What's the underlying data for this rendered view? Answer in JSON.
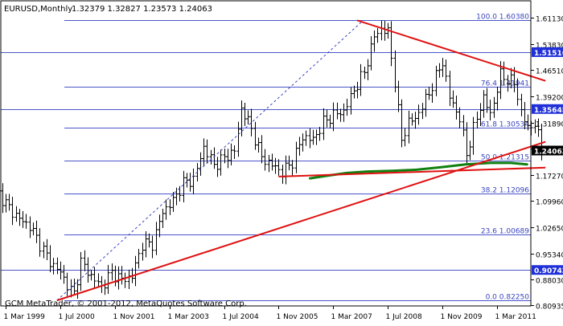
{
  "header": {
    "symbol": "EURUSD,Monthly",
    "ohlc": "1.32379 1.32827 1.23573 1.24063"
  },
  "footer_note": "GCM MetaTrader, © 2001-2012, MetaQuotes Software Corp.",
  "colors": {
    "background": "#ffffff",
    "frame": "#000000",
    "bar": "#000000",
    "fib_line": "#4a55c8",
    "fib_label": "#3a45c0",
    "trendline": "#e01010",
    "dashed_trend": "#3a45c0",
    "moving_average": "#108010",
    "price_box_blue": "#2030d8",
    "price_box_black": "#000000",
    "price_box_text": "#ffffff"
  },
  "chart_data": {
    "type": "ohlc",
    "title": "EURUSD,Monthly",
    "ylim": [
      0.78,
      1.66
    ],
    "y_ticks": [
      "1.61130",
      "1.53830",
      "1.46510",
      "1.39200",
      "1.31890",
      "1.24580",
      "1.17270",
      "1.09960",
      "1.02650",
      "0.95340",
      "0.88030",
      "0.80935"
    ],
    "y_tick_values": [
      1.6113,
      1.5383,
      1.4651,
      1.392,
      1.3189,
      1.2458,
      1.1727,
      1.0996,
      1.0265,
      0.9534,
      0.8803,
      0.80935
    ],
    "x_ticks": [
      "1 Mar 1999",
      "1 Jul 2000",
      "1 Nov 2001",
      "1 Mar 2003",
      "1 Jul 2004",
      "1 Nov 2005",
      "1 Mar 2007",
      "1 Jul 2008",
      "1 Nov 2009",
      "1 Mar 2011"
    ],
    "x_tick_values": [
      1999.167,
      2000.5,
      2001.833,
      2003.167,
      2004.5,
      2005.833,
      2007.167,
      2008.5,
      2009.833,
      2011.167
    ],
    "xlim": [
      1999.0,
      2012.35
    ],
    "fib_levels": [
      {
        "label": "100.0 1.60380",
        "price": 1.6038
      },
      {
        "label": "76.4 1.41941",
        "price": 1.41941
      },
      {
        "label": "61.8 1.30534",
        "price": 1.30534
      },
      {
        "label": "50.0 1.21315",
        "price": 1.21315
      },
      {
        "label": "38.2 1.12096",
        "price": 1.12096
      },
      {
        "label": "23.6 1.00689",
        "price": 1.00689
      },
      {
        "label": "0.0 0.82250",
        "price": 0.8225
      }
    ],
    "horizontal_lines": [
      {
        "label": "1.51516",
        "price": 1.51516
      },
      {
        "label": "1.35645",
        "price": 1.35645
      },
      {
        "label": "0.90742",
        "price": 0.90742
      }
    ],
    "current_price": {
      "label": "1.24063",
      "price": 1.24063
    },
    "series_monthly_close": [
      {
        "t": 1999.0,
        "c": 1.12
      },
      {
        "t": 1999.25,
        "c": 1.08
      },
      {
        "t": 1999.5,
        "c": 1.05
      },
      {
        "t": 1999.75,
        "c": 1.03
      },
      {
        "t": 2000.0,
        "c": 0.98
      },
      {
        "t": 2000.25,
        "c": 0.93
      },
      {
        "t": 2000.5,
        "c": 0.9
      },
      {
        "t": 2000.75,
        "c": 0.85
      },
      {
        "t": 2000.83,
        "c": 0.84
      },
      {
        "t": 2001.0,
        "c": 0.93
      },
      {
        "t": 2001.25,
        "c": 0.89
      },
      {
        "t": 2001.5,
        "c": 0.86
      },
      {
        "t": 2001.75,
        "c": 0.9
      },
      {
        "t": 2002.0,
        "c": 0.88
      },
      {
        "t": 2002.25,
        "c": 0.89
      },
      {
        "t": 2002.5,
        "c": 0.98
      },
      {
        "t": 2002.75,
        "c": 0.98
      },
      {
        "t": 2003.0,
        "c": 1.07
      },
      {
        "t": 2003.25,
        "c": 1.1
      },
      {
        "t": 2003.5,
        "c": 1.15
      },
      {
        "t": 2003.75,
        "c": 1.16
      },
      {
        "t": 2004.0,
        "c": 1.25
      },
      {
        "t": 2004.25,
        "c": 1.2
      },
      {
        "t": 2004.5,
        "c": 1.22
      },
      {
        "t": 2004.75,
        "c": 1.24
      },
      {
        "t": 2004.92,
        "c": 1.36
      },
      {
        "t": 2005.17,
        "c": 1.3
      },
      {
        "t": 2005.42,
        "c": 1.22
      },
      {
        "t": 2005.67,
        "c": 1.2
      },
      {
        "t": 2005.92,
        "c": 1.18
      },
      {
        "t": 2006.17,
        "c": 1.21
      },
      {
        "t": 2006.42,
        "c": 1.28
      },
      {
        "t": 2006.67,
        "c": 1.27
      },
      {
        "t": 2006.92,
        "c": 1.32
      },
      {
        "t": 2007.17,
        "c": 1.34
      },
      {
        "t": 2007.42,
        "c": 1.35
      },
      {
        "t": 2007.67,
        "c": 1.41
      },
      {
        "t": 2007.92,
        "c": 1.46
      },
      {
        "t": 2008.17,
        "c": 1.56
      },
      {
        "t": 2008.33,
        "c": 1.58
      },
      {
        "t": 2008.5,
        "c": 1.57
      },
      {
        "t": 2008.67,
        "c": 1.43
      },
      {
        "t": 2008.83,
        "c": 1.27
      },
      {
        "t": 2009.0,
        "c": 1.32
      },
      {
        "t": 2009.17,
        "c": 1.33
      },
      {
        "t": 2009.5,
        "c": 1.4
      },
      {
        "t": 2009.83,
        "c": 1.49
      },
      {
        "t": 2010.0,
        "c": 1.39
      },
      {
        "t": 2010.25,
        "c": 1.33
      },
      {
        "t": 2010.42,
        "c": 1.23
      },
      {
        "t": 2010.58,
        "c": 1.3
      },
      {
        "t": 2010.83,
        "c": 1.39
      },
      {
        "t": 2011.0,
        "c": 1.34
      },
      {
        "t": 2011.25,
        "c": 1.45
      },
      {
        "t": 2011.42,
        "c": 1.44
      },
      {
        "t": 2011.58,
        "c": 1.43
      },
      {
        "t": 2011.75,
        "c": 1.35
      },
      {
        "t": 2011.92,
        "c": 1.3
      },
      {
        "t": 2012.08,
        "c": 1.32
      },
      {
        "t": 2012.25,
        "c": 1.24
      }
    ],
    "trendlines": [
      {
        "from": {
          "t": 2000.42,
          "p": 0.8225
        },
        "to": {
          "t": 2012.35,
          "p": 1.265
        }
      },
      {
        "from": {
          "t": 2005.83,
          "p": 1.168
        },
        "to": {
          "t": 2012.35,
          "p": 1.193
        }
      },
      {
        "from": {
          "t": 2007.75,
          "p": 1.6038
        },
        "to": {
          "t": 2012.35,
          "p": 1.435
        }
      }
    ],
    "dashed_trendline": {
      "from": {
        "t": 2000.42,
        "p": 0.8225
      },
      "to": {
        "t": 2007.9,
        "p": 1.6038
      }
    },
    "moving_average": [
      {
        "t": 2006.6,
        "p": 1.163
      },
      {
        "t": 2007.0,
        "p": 1.17
      },
      {
        "t": 2007.5,
        "p": 1.178
      },
      {
        "t": 2008.0,
        "p": 1.182
      },
      {
        "t": 2008.6,
        "p": 1.184
      },
      {
        "t": 2009.2,
        "p": 1.187
      },
      {
        "t": 2009.8,
        "p": 1.194
      },
      {
        "t": 2010.4,
        "p": 1.202
      },
      {
        "t": 2011.0,
        "p": 1.206
      },
      {
        "t": 2011.5,
        "p": 1.206
      },
      {
        "t": 2011.9,
        "p": 1.202
      }
    ]
  }
}
